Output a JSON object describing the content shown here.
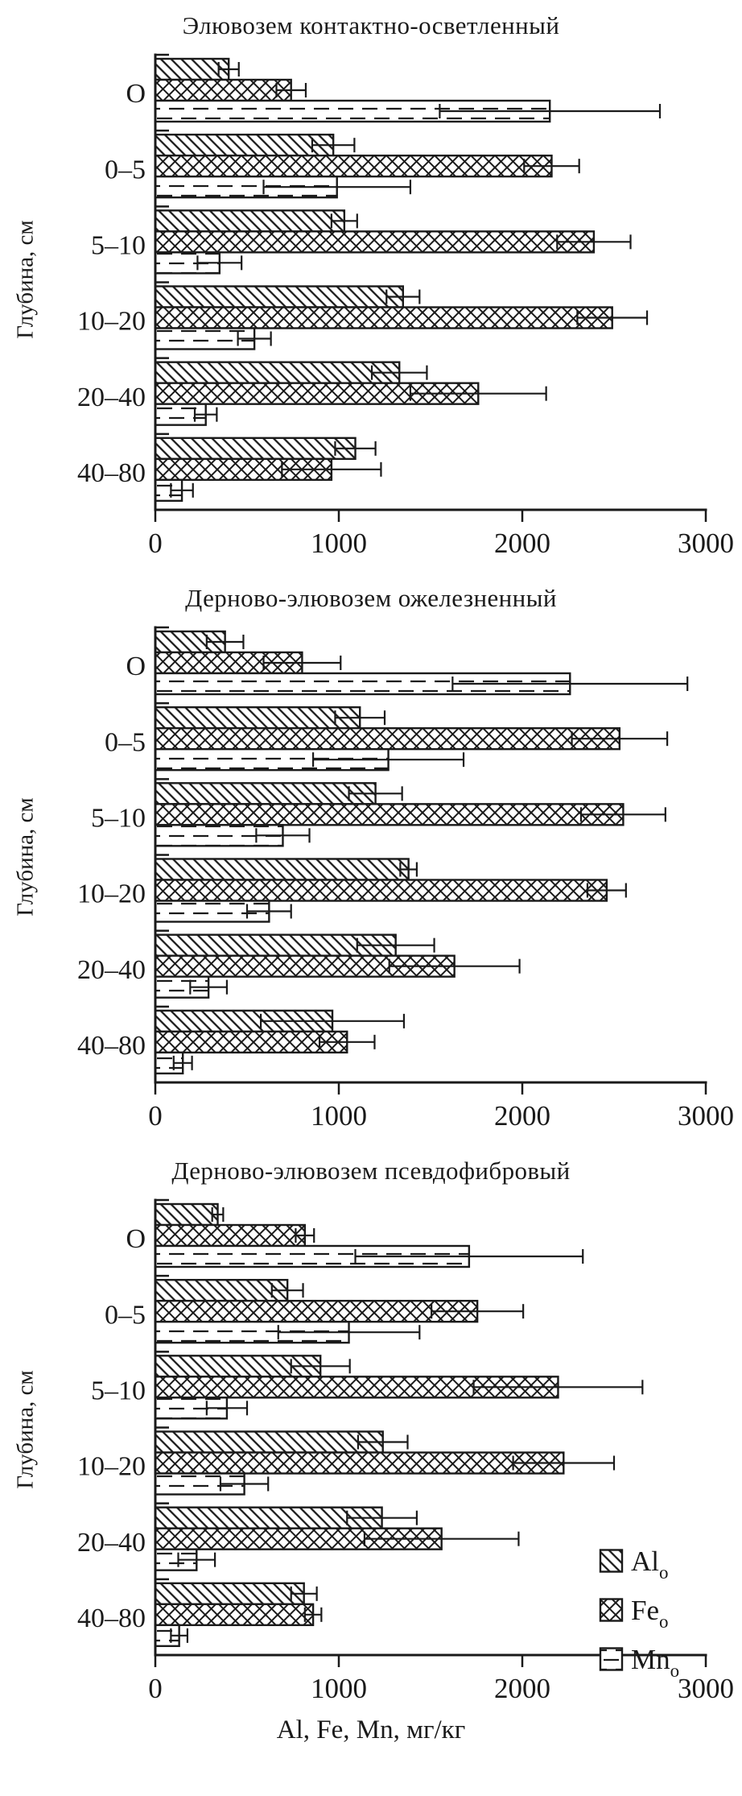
{
  "figure": {
    "background": "#ffffff",
    "ink_color": "#1a1a1a",
    "xaxis_title": "Al, Fe, Mn, мг/кг",
    "yaxis_title": "Глубина, см"
  },
  "legend": {
    "position": "inside-right-of-third-chart",
    "items": [
      {
        "label": "Al",
        "sub": "o",
        "pattern": "diagonal-hatch"
      },
      {
        "label": "Fe",
        "sub": "o",
        "pattern": "cross-hatch"
      },
      {
        "label": "Mn",
        "sub": "o",
        "pattern": "dashed-lines"
      }
    ]
  },
  "chart_data": [
    {
      "type": "bar",
      "orientation": "horizontal",
      "title": "Элювозем контактно-осветленный",
      "ylabel": "Глубина, см",
      "xlabel": "",
      "xlim": [
        0,
        3000
      ],
      "x_ticks": [
        0,
        1000,
        2000,
        3000
      ],
      "grid": false,
      "show_legend": false,
      "categories": [
        "O",
        "0–5",
        "5–10",
        "10–20",
        "20–40",
        "40–80"
      ],
      "series": [
        {
          "name": "Al_o",
          "pattern": "diagonal-hatch",
          "values": [
            400,
            970,
            1030,
            1350,
            1330,
            1090
          ],
          "errors": [
            55,
            115,
            70,
            90,
            150,
            110
          ]
        },
        {
          "name": "Fe_o",
          "pattern": "cross-hatch",
          "values": [
            740,
            2160,
            2390,
            2490,
            1760,
            960
          ],
          "errors": [
            80,
            150,
            200,
            190,
            370,
            270
          ]
        },
        {
          "name": "Mn_o",
          "pattern": "dashed-lines",
          "values": [
            2150,
            990,
            350,
            540,
            275,
            145
          ],
          "errors": [
            600,
            400,
            120,
            90,
            60,
            60
          ]
        }
      ]
    },
    {
      "type": "bar",
      "orientation": "horizontal",
      "title": "Дерново-элювозем ожелезненный",
      "ylabel": "Глубина, см",
      "xlabel": "",
      "xlim": [
        0,
        3000
      ],
      "x_ticks": [
        0,
        1000,
        2000,
        3000
      ],
      "grid": false,
      "show_legend": false,
      "categories": [
        "O",
        "0–5",
        "5–10",
        "10–20",
        "20–40",
        "40–80"
      ],
      "series": [
        {
          "name": "Al_o",
          "pattern": "diagonal-hatch",
          "values": [
            380,
            1115,
            1200,
            1380,
            1310,
            965
          ],
          "errors": [
            100,
            135,
            145,
            45,
            210,
            390
          ]
        },
        {
          "name": "Fe_o",
          "pattern": "cross-hatch",
          "values": [
            800,
            2530,
            2550,
            2460,
            1630,
            1045
          ],
          "errors": [
            210,
            260,
            230,
            105,
            355,
            150
          ]
        },
        {
          "name": "Mn_o",
          "pattern": "dashed-lines",
          "values": [
            2260,
            1270,
            695,
            620,
            290,
            150
          ],
          "errors": [
            640,
            410,
            145,
            120,
            100,
            50
          ]
        }
      ]
    },
    {
      "type": "bar",
      "orientation": "horizontal",
      "title": "Дерново-элювозем псевдофибровый",
      "ylabel": "Глубина, см",
      "xlabel": "Al, Fe, Mn, мг/кг",
      "xlim": [
        0,
        3000
      ],
      "x_ticks": [
        0,
        1000,
        2000,
        3000
      ],
      "grid": false,
      "show_legend": true,
      "categories": [
        "O",
        "0–5",
        "5–10",
        "10–20",
        "20–40",
        "40–80"
      ],
      "series": [
        {
          "name": "Al_o",
          "pattern": "diagonal-hatch",
          "values": [
            340,
            720,
            900,
            1240,
            1235,
            810
          ],
          "errors": [
            30,
            85,
            160,
            135,
            190,
            70
          ]
        },
        {
          "name": "Fe_o",
          "pattern": "cross-hatch",
          "values": [
            815,
            1755,
            2195,
            2225,
            1560,
            860
          ],
          "errors": [
            50,
            250,
            460,
            275,
            420,
            45
          ]
        },
        {
          "name": "Mn_o",
          "pattern": "dashed-lines",
          "values": [
            1710,
            1055,
            390,
            485,
            225,
            130
          ],
          "errors": [
            620,
            385,
            110,
            130,
            100,
            45
          ]
        }
      ]
    }
  ]
}
